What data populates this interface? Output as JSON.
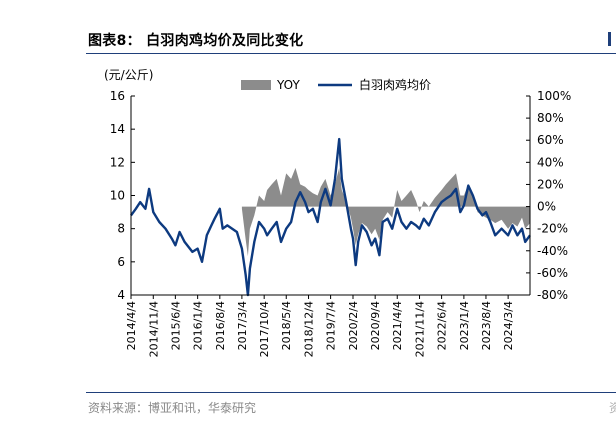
{
  "figure": {
    "title": "图表8：  白羽肉鸡均价及同比变化",
    "source": "资料来源：博亚和讯，华泰研究",
    "edge_glyph": "资"
  },
  "colors": {
    "price": "#0d3a80",
    "yoy": "#8c8c8c",
    "rule": "#1f3f7a"
  },
  "chart_data": {
    "type": "line+area",
    "left_axis": {
      "unit": "(元/公斤)",
      "ylim": [
        4,
        16
      ],
      "ticks": [
        "4",
        "6",
        "8",
        "10",
        "12",
        "14",
        "16"
      ]
    },
    "right_axis": {
      "ylim": [
        -80,
        100
      ],
      "ticks": [
        "-80%",
        "-60%",
        "-40%",
        "-20%",
        "0%",
        "20%",
        "40%",
        "60%",
        "80%",
        "100%"
      ]
    },
    "x_range": [
      "2014-04-04",
      "2024-09-30"
    ],
    "x_ticks": [
      "2014/4/4",
      "2014/11/4",
      "2015/6/4",
      "2016/1/4",
      "2016/8/4",
      "2017/3/4",
      "2017/10/4",
      "2018/5/4",
      "2018/12/4",
      "2019/7/4",
      "2020/2/4",
      "2020/9/4",
      "2021/4/4",
      "2021/11/4",
      "2022/6/4",
      "2023/1/4",
      "2023/8/4",
      "2024/3/4"
    ],
    "legend": [
      "YOY",
      "白羽肉鸡均价"
    ],
    "series": [
      {
        "name": "白羽肉鸡均价",
        "axis": "left",
        "style": "line",
        "points": [
          [
            "2014-04-04",
            8.8
          ],
          [
            "2014-05-20",
            9.2
          ],
          [
            "2014-07-01",
            9.6
          ],
          [
            "2014-08-20",
            9.2
          ],
          [
            "2014-09-25",
            10.4
          ],
          [
            "2014-11-04",
            9.0
          ],
          [
            "2015-01-01",
            8.4
          ],
          [
            "2015-03-01",
            8.0
          ],
          [
            "2015-05-01",
            7.4
          ],
          [
            "2015-06-04",
            7.0
          ],
          [
            "2015-07-15",
            7.8
          ],
          [
            "2015-09-01",
            7.2
          ],
          [
            "2015-11-15",
            6.6
          ],
          [
            "2016-01-04",
            6.8
          ],
          [
            "2016-02-15",
            6.0
          ],
          [
            "2016-04-01",
            7.6
          ],
          [
            "2016-05-15",
            8.2
          ],
          [
            "2016-06-15",
            8.6
          ],
          [
            "2016-08-04",
            9.2
          ],
          [
            "2016-09-01",
            8.0
          ],
          [
            "2016-10-15",
            8.2
          ],
          [
            "2016-12-01",
            8.0
          ],
          [
            "2017-01-15",
            7.8
          ],
          [
            "2017-03-04",
            6.8
          ],
          [
            "2017-04-10",
            5.2
          ],
          [
            "2017-05-01",
            4.0
          ],
          [
            "2017-05-20",
            5.6
          ],
          [
            "2017-07-01",
            7.2
          ],
          [
            "2017-08-15",
            8.4
          ],
          [
            "2017-10-04",
            8.0
          ],
          [
            "2017-11-01",
            7.6
          ],
          [
            "2017-12-15",
            8.0
          ],
          [
            "2018-02-01",
            8.4
          ],
          [
            "2018-03-15",
            7.2
          ],
          [
            "2018-05-04",
            8.0
          ],
          [
            "2018-06-20",
            8.4
          ],
          [
            "2018-08-01",
            9.6
          ],
          [
            "2018-09-15",
            10.2
          ],
          [
            "2018-11-01",
            9.6
          ],
          [
            "2018-12-04",
            9.0
          ],
          [
            "2019-01-15",
            9.2
          ],
          [
            "2019-03-01",
            8.4
          ],
          [
            "2019-04-01",
            9.6
          ],
          [
            "2019-05-15",
            10.4
          ],
          [
            "2019-07-04",
            9.4
          ],
          [
            "2019-08-15",
            11.0
          ],
          [
            "2019-09-25",
            13.4
          ],
          [
            "2019-10-20",
            11.0
          ],
          [
            "2019-12-01",
            9.6
          ],
          [
            "2020-01-15",
            8.0
          ],
          [
            "2020-02-04",
            7.4
          ],
          [
            "2020-03-01",
            5.8
          ],
          [
            "2020-03-25",
            7.2
          ],
          [
            "2020-05-01",
            8.2
          ],
          [
            "2020-06-15",
            7.8
          ],
          [
            "2020-08-01",
            7.0
          ],
          [
            "2020-09-04",
            7.4
          ],
          [
            "2020-10-15",
            6.4
          ],
          [
            "2020-11-15",
            8.4
          ],
          [
            "2021-01-01",
            8.6
          ],
          [
            "2021-02-15",
            8.0
          ],
          [
            "2021-04-04",
            9.2
          ],
          [
            "2021-05-15",
            8.4
          ],
          [
            "2021-07-01",
            8.0
          ],
          [
            "2021-08-15",
            8.4
          ],
          [
            "2021-10-01",
            8.2
          ],
          [
            "2021-11-04",
            8.0
          ],
          [
            "2021-12-15",
            8.6
          ],
          [
            "2022-02-01",
            8.2
          ],
          [
            "2022-04-01",
            9.0
          ],
          [
            "2022-06-04",
            9.6
          ],
          [
            "2022-07-15",
            9.8
          ],
          [
            "2022-09-01",
            10.0
          ],
          [
            "2022-10-20",
            10.4
          ],
          [
            "2022-12-01",
            9.0
          ],
          [
            "2023-01-04",
            9.4
          ],
          [
            "2023-02-15",
            10.6
          ],
          [
            "2023-04-01",
            10.0
          ],
          [
            "2023-05-15",
            9.2
          ],
          [
            "2023-07-01",
            8.8
          ],
          [
            "2023-08-04",
            9.0
          ],
          [
            "2023-09-15",
            8.4
          ],
          [
            "2023-11-01",
            7.6
          ],
          [
            "2024-01-01",
            8.0
          ],
          [
            "2024-03-04",
            7.6
          ],
          [
            "2024-04-15",
            8.2
          ],
          [
            "2024-06-01",
            7.6
          ],
          [
            "2024-07-15",
            8.0
          ],
          [
            "2024-08-15",
            7.2
          ],
          [
            "2024-09-30",
            7.6
          ]
        ]
      },
      {
        "name": "YOY",
        "axis": "right",
        "style": "area",
        "points": [
          [
            "2017-03-04",
            -2
          ],
          [
            "2017-04-10",
            -30
          ],
          [
            "2017-05-01",
            -45
          ],
          [
            "2017-05-20",
            -20
          ],
          [
            "2017-07-01",
            -8
          ],
          [
            "2017-08-15",
            10
          ],
          [
            "2017-10-04",
            5
          ],
          [
            "2017-11-01",
            15
          ],
          [
            "2017-12-15",
            20
          ],
          [
            "2018-02-01",
            25
          ],
          [
            "2018-03-15",
            10
          ],
          [
            "2018-05-04",
            30
          ],
          [
            "2018-06-20",
            25
          ],
          [
            "2018-08-01",
            35
          ],
          [
            "2018-09-15",
            20
          ],
          [
            "2018-11-01",
            18
          ],
          [
            "2018-12-04",
            15
          ],
          [
            "2019-01-15",
            12
          ],
          [
            "2019-03-01",
            10
          ],
          [
            "2019-04-01",
            18
          ],
          [
            "2019-05-15",
            25
          ],
          [
            "2019-07-04",
            10
          ],
          [
            "2019-08-15",
            20
          ],
          [
            "2019-09-25",
            35
          ],
          [
            "2019-10-20",
            15
          ],
          [
            "2019-12-01",
            5
          ],
          [
            "2020-01-15",
            -10
          ],
          [
            "2020-02-04",
            -20
          ],
          [
            "2020-03-01",
            -35
          ],
          [
            "2020-03-25",
            -25
          ],
          [
            "2020-05-01",
            -15
          ],
          [
            "2020-06-15",
            -18
          ],
          [
            "2020-08-01",
            -25
          ],
          [
            "2020-09-04",
            -20
          ],
          [
            "2020-10-15",
            -30
          ],
          [
            "2020-11-15",
            -12
          ],
          [
            "2021-01-01",
            -5
          ],
          [
            "2021-02-15",
            -10
          ],
          [
            "2021-04-04",
            15
          ],
          [
            "2021-05-15",
            5
          ],
          [
            "2021-07-01",
            10
          ],
          [
            "2021-08-15",
            15
          ],
          [
            "2021-10-01",
            5
          ],
          [
            "2021-11-04",
            -5
          ],
          [
            "2021-12-15",
            5
          ],
          [
            "2022-02-01",
            0
          ],
          [
            "2022-04-01",
            8
          ],
          [
            "2022-06-04",
            15
          ],
          [
            "2022-07-15",
            20
          ],
          [
            "2022-09-01",
            25
          ],
          [
            "2022-10-20",
            30
          ],
          [
            "2022-12-01",
            10
          ],
          [
            "2023-01-04",
            10
          ],
          [
            "2023-02-15",
            20
          ],
          [
            "2023-04-01",
            12
          ],
          [
            "2023-05-15",
            -5
          ],
          [
            "2023-07-01",
            -8
          ],
          [
            "2023-08-04",
            -10
          ],
          [
            "2023-09-15",
            -12
          ],
          [
            "2023-11-01",
            -15
          ],
          [
            "2024-01-01",
            -12
          ],
          [
            "2024-03-04",
            -20
          ],
          [
            "2024-04-15",
            -15
          ],
          [
            "2024-06-01",
            -18
          ],
          [
            "2024-07-15",
            -10
          ],
          [
            "2024-08-15",
            -20
          ],
          [
            "2024-09-30",
            -15
          ]
        ]
      }
    ],
    "grid": false,
    "legend_position": "top"
  }
}
